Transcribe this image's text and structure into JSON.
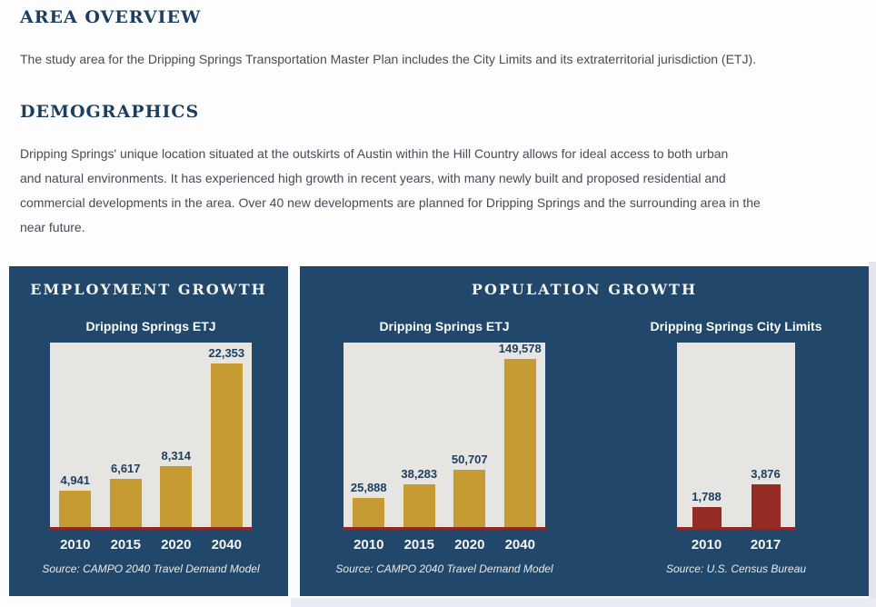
{
  "page": {
    "section1_title": "AREA OVERVIEW",
    "section1_body": "The study area for the Dripping Springs Transportation Master Plan includes the City Limits and its extraterritorial jurisdiction (ETJ).",
    "section2_title": "DEMOGRAPHICS",
    "section2_body": "Dripping Springs' unique location situated at the outskirts of Austin within the Hill Country allows for ideal access to both urban\nand natural environments. It has experienced high growth in recent years, with many newly built and proposed residential and\ncommercial developments in the area. Over 40 new developments are planned for Dripping Springs and the surrounding area in the\nnear future."
  },
  "panels": [
    {
      "title": "EMPLOYMENT GROWTH"
    },
    {
      "title": "POPULATION GROWTH"
    }
  ],
  "colors": {
    "panel_bg": "#21476a",
    "plot_bg": "#e6e5e2",
    "baseline": "#8b2a26",
    "gold_bar": "#c69b31",
    "maroon_bar": "#952c24",
    "heading_text": "#1d3f5f",
    "body_text": "#454c57",
    "value_label_text": "#1d3f61"
  },
  "chart_data": [
    {
      "type": "bar",
      "panel": "EMPLOYMENT GROWTH",
      "title": "Dripping Springs ETJ",
      "categories": [
        "2010",
        "2015",
        "2020",
        "2040"
      ],
      "values": [
        4941,
        6617,
        8314,
        22353
      ],
      "bar_color": "#c69b31",
      "ylim": [
        0,
        25600
      ],
      "grid": false,
      "legend": false,
      "source": "Source: CAMPO 2040 Travel Demand Model"
    },
    {
      "type": "bar",
      "panel": "POPULATION GROWTH",
      "title": "Dripping Springs ETJ",
      "categories": [
        "2010",
        "2015",
        "2020",
        "2040"
      ],
      "values": [
        25888,
        38283,
        50707,
        149578
      ],
      "bar_color": "#c69b31",
      "ylim": [
        0,
        166500
      ],
      "grid": false,
      "legend": false,
      "source": "Source: CAMPO 2040 Travel Demand Model"
    },
    {
      "type": "bar",
      "panel": "POPULATION GROWTH",
      "title": "Dripping Springs City Limits",
      "categories": [
        "2010",
        "2017"
      ],
      "values": [
        1788,
        3876
      ],
      "bar_color": "#952c24",
      "ylim": [
        0,
        17000
      ],
      "grid": false,
      "legend": false,
      "source": "Source: U.S. Census Bureau"
    }
  ]
}
